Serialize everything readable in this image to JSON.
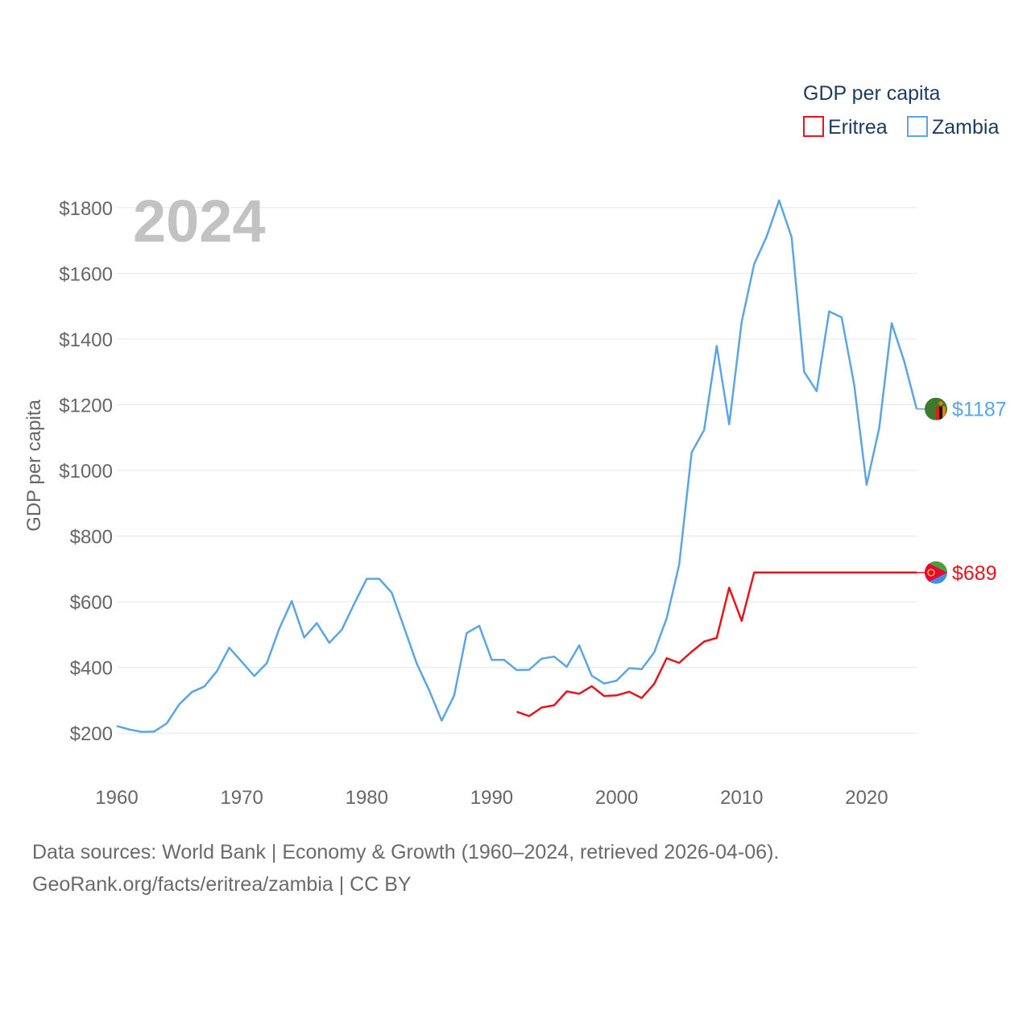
{
  "chart_data": {
    "type": "line",
    "title": "",
    "watermark_year": "2024",
    "ylabel": "GDP per capita",
    "xlabel": "",
    "xlim": [
      1960,
      2024
    ],
    "ylim": [
      100,
      1900
    ],
    "grid": true,
    "legend": {
      "title": "GDP per capita",
      "placement": "top-right",
      "entries": [
        {
          "name": "Eritrea",
          "color": "#e8141b"
        },
        {
          "name": "Zambia",
          "color": "#5ba5e6"
        }
      ]
    },
    "x_ticks": [
      {
        "value": 1960,
        "label": "1960"
      },
      {
        "value": 1970,
        "label": "1970"
      },
      {
        "value": 1980,
        "label": "1980"
      },
      {
        "value": 1990,
        "label": "1990"
      },
      {
        "value": 2000,
        "label": "2000"
      },
      {
        "value": 2010,
        "label": "2010"
      },
      {
        "value": 2020,
        "label": "2020"
      }
    ],
    "y_ticks": [
      {
        "value": 200,
        "label": "$200"
      },
      {
        "value": 400,
        "label": "$400"
      },
      {
        "value": 600,
        "label": "$600"
      },
      {
        "value": 800,
        "label": "$800"
      },
      {
        "value": 1000,
        "label": "$1000"
      },
      {
        "value": 1200,
        "label": "$1200"
      },
      {
        "value": 1400,
        "label": "$1400"
      },
      {
        "value": 1600,
        "label": "$1600"
      },
      {
        "value": 1800,
        "label": "$1800"
      }
    ],
    "series": [
      {
        "name": "Zambia",
        "color": "#5ba5e6",
        "end_label": "$1187",
        "end_value": 1187,
        "flag": "zambia-flag",
        "points": [
          [
            1960,
            222
          ],
          [
            1961,
            211
          ],
          [
            1962,
            204
          ],
          [
            1963,
            205
          ],
          [
            1964,
            230
          ],
          [
            1965,
            288
          ],
          [
            1966,
            325
          ],
          [
            1967,
            342
          ],
          [
            1968,
            388
          ],
          [
            1969,
            460
          ],
          [
            1970,
            417
          ],
          [
            1971,
            374
          ],
          [
            1972,
            413
          ],
          [
            1973,
            518
          ],
          [
            1974,
            602
          ],
          [
            1975,
            491
          ],
          [
            1976,
            535
          ],
          [
            1977,
            475
          ],
          [
            1978,
            515
          ],
          [
            1979,
            594
          ],
          [
            1980,
            670
          ],
          [
            1981,
            670
          ],
          [
            1982,
            628
          ],
          [
            1983,
            520
          ],
          [
            1984,
            412
          ],
          [
            1985,
            330
          ],
          [
            1986,
            238
          ],
          [
            1987,
            315
          ],
          [
            1988,
            505
          ],
          [
            1989,
            527
          ],
          [
            1990,
            423
          ],
          [
            1991,
            423
          ],
          [
            1992,
            392
          ],
          [
            1993,
            393
          ],
          [
            1994,
            427
          ],
          [
            1995,
            433
          ],
          [
            1996,
            402
          ],
          [
            1997,
            467
          ],
          [
            1998,
            375
          ],
          [
            1999,
            351
          ],
          [
            2000,
            360
          ],
          [
            2001,
            398
          ],
          [
            2002,
            395
          ],
          [
            2003,
            446
          ],
          [
            2004,
            550
          ],
          [
            2005,
            713
          ],
          [
            2006,
            1055
          ],
          [
            2007,
            1123
          ],
          [
            2008,
            1379
          ],
          [
            2009,
            1140
          ],
          [
            2010,
            1452
          ],
          [
            2011,
            1628
          ],
          [
            2012,
            1712
          ],
          [
            2013,
            1822
          ],
          [
            2014,
            1710
          ],
          [
            2015,
            1300
          ],
          [
            2016,
            1241
          ],
          [
            2017,
            1484
          ],
          [
            2018,
            1466
          ],
          [
            2019,
            1262
          ],
          [
            2020,
            956
          ],
          [
            2021,
            1128
          ],
          [
            2022,
            1448
          ],
          [
            2023,
            1333
          ],
          [
            2024,
            1187
          ]
        ]
      },
      {
        "name": "Eritrea",
        "color": "#e8141b",
        "end_label": "$689",
        "end_value": 689,
        "flag": "eritrea-flag",
        "points": [
          [
            1992,
            265
          ],
          [
            1993,
            252
          ],
          [
            1994,
            278
          ],
          [
            1995,
            285
          ],
          [
            1996,
            327
          ],
          [
            1997,
            320
          ],
          [
            1998,
            343
          ],
          [
            1999,
            313
          ],
          [
            2000,
            315
          ],
          [
            2001,
            326
          ],
          [
            2002,
            307
          ],
          [
            2003,
            350
          ],
          [
            2004,
            428
          ],
          [
            2005,
            414
          ],
          [
            2006,
            448
          ],
          [
            2007,
            479
          ],
          [
            2008,
            490
          ],
          [
            2009,
            643
          ],
          [
            2010,
            542
          ],
          [
            2011,
            689
          ],
          [
            2012,
            689
          ],
          [
            2013,
            689
          ],
          [
            2014,
            689
          ],
          [
            2015,
            689
          ],
          [
            2016,
            689
          ],
          [
            2017,
            689
          ],
          [
            2018,
            689
          ],
          [
            2019,
            689
          ],
          [
            2020,
            689
          ],
          [
            2021,
            689
          ],
          [
            2022,
            689
          ],
          [
            2023,
            689
          ],
          [
            2024,
            689
          ]
        ]
      }
    ]
  },
  "footer": {
    "line1": "Data sources: World Bank | Economy & Growth (1960–2024, retrieved 2026-04-06).",
    "line2": "GeoRank.org/facts/eritrea/zambia | CC BY"
  }
}
